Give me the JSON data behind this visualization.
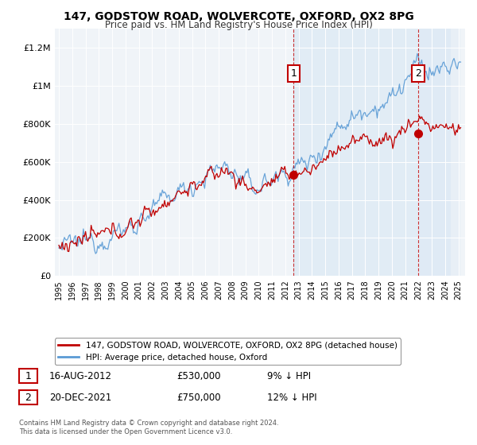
{
  "title": "147, GODSTOW ROAD, WOLVERCOTE, OXFORD, OX2 8PG",
  "subtitle": "Price paid vs. HM Land Registry's House Price Index (HPI)",
  "legend_line1": "147, GODSTOW ROAD, WOLVERCOTE, OXFORD, OX2 8PG (detached house)",
  "legend_line2": "HPI: Average price, detached house, Oxford",
  "annotation1_label": "1",
  "annotation1_date": "16-AUG-2012",
  "annotation1_price": "£530,000",
  "annotation1_hpi": "9% ↓ HPI",
  "annotation1_year": 2012.62,
  "annotation1_value": 530000,
  "annotation2_label": "2",
  "annotation2_date": "20-DEC-2021",
  "annotation2_price": "£750,000",
  "annotation2_hpi": "12% ↓ HPI",
  "annotation2_year": 2021.97,
  "annotation2_value": 750000,
  "footer": "Contains HM Land Registry data © Crown copyright and database right 2024.\nThis data is licensed under the Open Government Licence v3.0.",
  "hpi_color": "#5b9bd5",
  "price_color": "#c00000",
  "annotation_box_color": "#c00000",
  "shade_color": "#dce9f5",
  "background_plot": "#f0f4f8",
  "ylim": [
    0,
    1300000
  ],
  "xlim_start": 1994.7,
  "xlim_end": 2025.5,
  "yticks": [
    0,
    200000,
    400000,
    600000,
    800000,
    1000000,
    1200000
  ],
  "ytick_labels": [
    "£0",
    "£200K",
    "£400K",
    "£600K",
    "£800K",
    "£1M",
    "£1.2M"
  ]
}
